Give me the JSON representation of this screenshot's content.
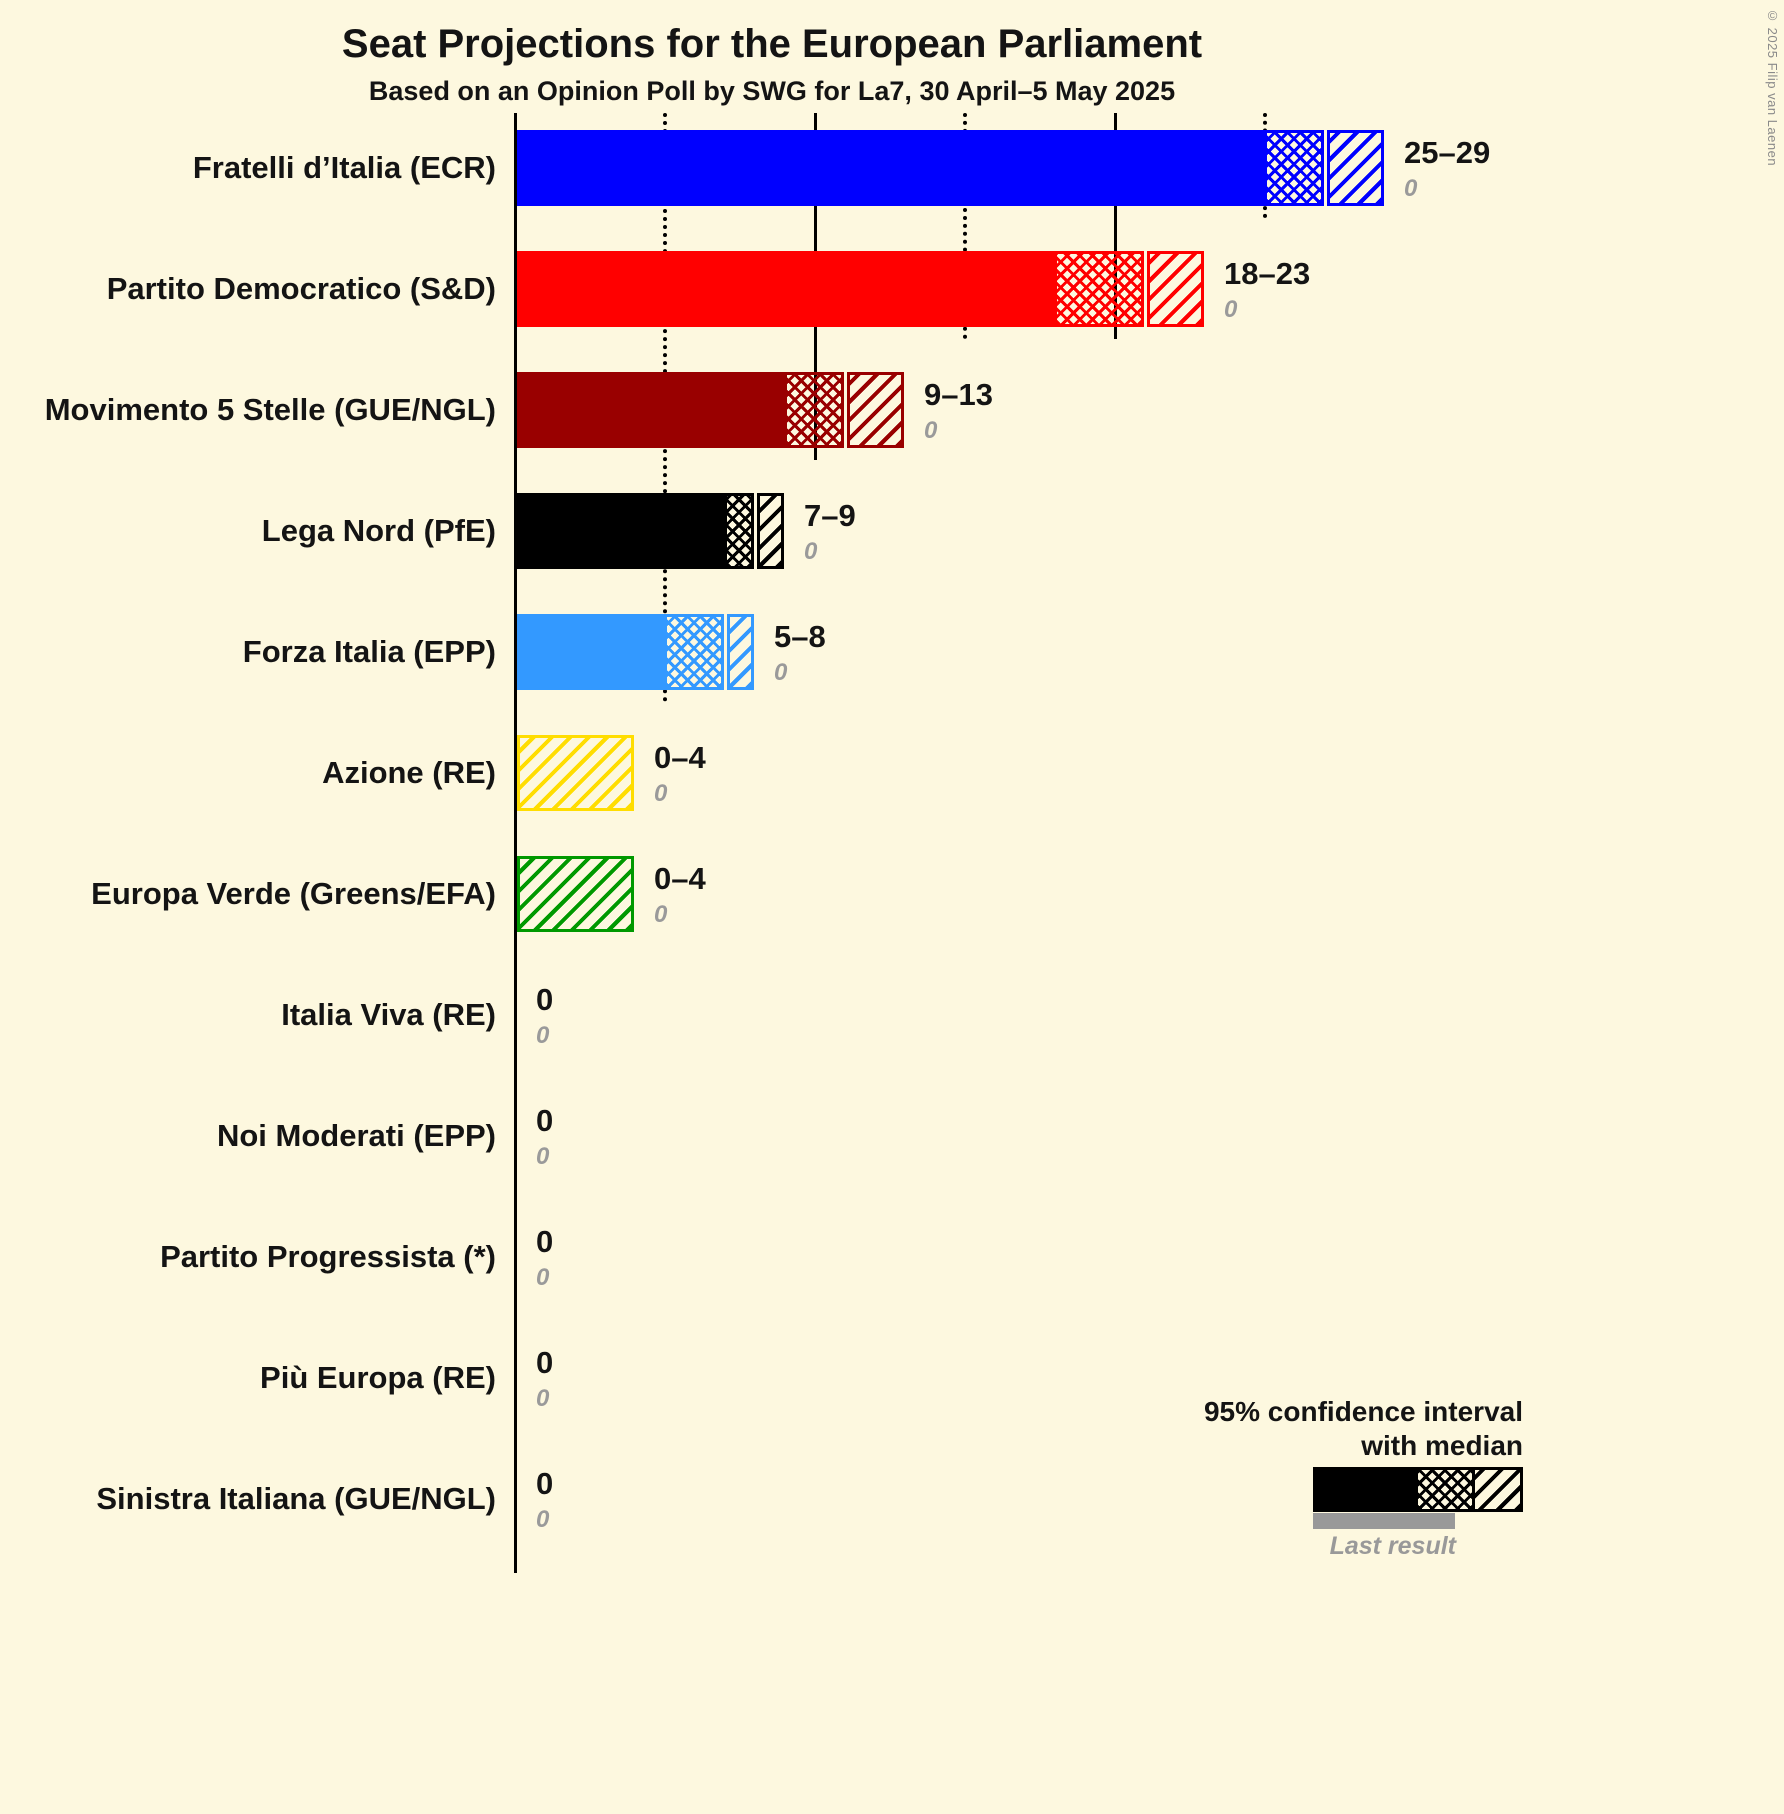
{
  "copyright": "© 2025 Filip van Laenen",
  "colors": {
    "background": "#FDF8DF",
    "text": "#141414",
    "muted": "#9a9a9a",
    "axis": "#000000",
    "last_result_bar": "#999999"
  },
  "legend": {
    "line1": "95% confidence interval",
    "line2": "with median",
    "last_result_label": "Last result"
  },
  "chart_data": {
    "type": "bar",
    "orientation": "horizontal",
    "title": "Seat Projections for the European Parliament",
    "subtitle": "Based on an Opinion Poll by SWG for La7, 30 April–5 May 2025",
    "unit": "seats",
    "x_axis": {
      "min": 0,
      "max": 30,
      "gridlines": [
        {
          "value": 5,
          "style": "dotted"
        },
        {
          "value": 10,
          "style": "solid"
        },
        {
          "value": 15,
          "style": "dotted"
        },
        {
          "value": 20,
          "style": "solid"
        },
        {
          "value": 25,
          "style": "dotted"
        }
      ]
    },
    "parties": [
      {
        "label": "Fratelli d’Italia (ECR)",
        "low": 25,
        "median": 27,
        "high": 29,
        "range_label": "25–29",
        "last_result": "0",
        "color": "#0000FF"
      },
      {
        "label": "Partito Democratico (S&D)",
        "low": 18,
        "median": 21,
        "high": 23,
        "range_label": "18–23",
        "last_result": "0",
        "color": "#FF0000"
      },
      {
        "label": "Movimento 5 Stelle (GUE/NGL)",
        "low": 9,
        "median": 11,
        "high": 13,
        "range_label": "9–13",
        "last_result": "0",
        "color": "#990000"
      },
      {
        "label": "Lega Nord (PfE)",
        "low": 7,
        "median": 8,
        "high": 9,
        "range_label": "7–9",
        "last_result": "0",
        "color": "#000000"
      },
      {
        "label": "Forza Italia (EPP)",
        "low": 5,
        "median": 7,
        "high": 8,
        "range_label": "5–8",
        "last_result": "0",
        "color": "#3399FF"
      },
      {
        "label": "Azione (RE)",
        "low": 0,
        "median": 0,
        "high": 4,
        "range_label": "0–4",
        "last_result": "0",
        "color": "#FFDD00"
      },
      {
        "label": "Europa Verde (Greens/EFA)",
        "low": 0,
        "median": 0,
        "high": 4,
        "range_label": "0–4",
        "last_result": "0",
        "color": "#009900"
      },
      {
        "label": "Italia Viva (RE)",
        "low": 0,
        "median": 0,
        "high": 0,
        "range_label": "0",
        "last_result": "0"
      },
      {
        "label": "Noi Moderati (EPP)",
        "low": 0,
        "median": 0,
        "high": 0,
        "range_label": "0",
        "last_result": "0"
      },
      {
        "label": "Partito Progressista (*)",
        "low": 0,
        "median": 0,
        "high": 0,
        "range_label": "0",
        "last_result": "0"
      },
      {
        "label": "Più Europa (RE)",
        "low": 0,
        "median": 0,
        "high": 0,
        "range_label": "0",
        "last_result": "0"
      },
      {
        "label": "Sinistra Italiana (GUE/NGL)",
        "low": 0,
        "median": 0,
        "high": 0,
        "range_label": "0",
        "last_result": "0"
      }
    ]
  }
}
